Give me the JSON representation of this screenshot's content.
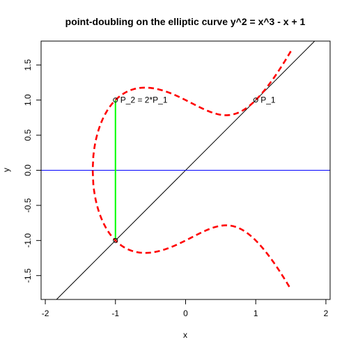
{
  "chart_data": {
    "type": "line",
    "title": "point-doubling on the elliptic curve  y^2  =  x^3 - x + 1",
    "xlabel": "x",
    "ylabel": "y",
    "xlim": [
      -2.06,
      2.06
    ],
    "ylim": [
      -1.84,
      1.84
    ],
    "x_ticks": [
      -2,
      -1,
      0,
      1,
      2
    ],
    "y_ticks": [
      -1.5,
      -1.0,
      -0.5,
      0.0,
      0.5,
      1.0,
      1.5
    ],
    "y_tick_labels": [
      "-1.5",
      "-1.0",
      "-0.5",
      "0.0",
      "0.5",
      "1.0",
      "1.5"
    ],
    "grid": false,
    "curve": {
      "equation": "y^2 = x^3 - x + 1",
      "x_from": -1.3247,
      "x_to": 1.5,
      "color": "#ff0000",
      "style": "dashed"
    },
    "tangent_line": {
      "slope": 1,
      "intercept": 0,
      "color": "#000000"
    },
    "horizontal_line": {
      "y": 0,
      "color": "#0000ff"
    },
    "vertical_segment": {
      "x": -1,
      "y_from": -1,
      "y_to": 1,
      "color": "#00ff00"
    },
    "points": [
      {
        "label": "P_1",
        "x": 1,
        "y": 1
      },
      {
        "label": "P_2 = 2*P_1",
        "x": -1,
        "y": 1
      },
      {
        "label": "",
        "x": -1,
        "y": -1
      }
    ]
  }
}
